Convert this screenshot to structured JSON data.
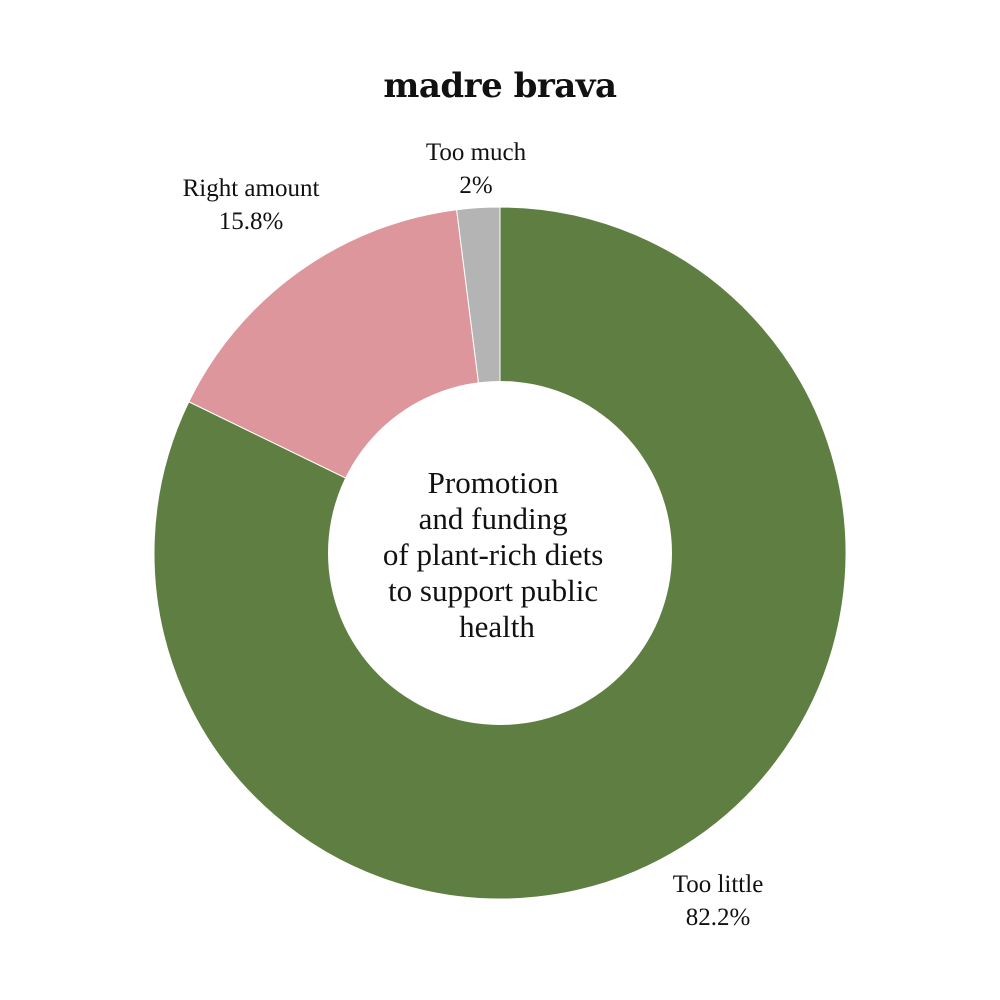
{
  "logo": {
    "text": "madre brava"
  },
  "chart_data": {
    "type": "pie",
    "center_label": [
      "Promotion",
      "and funding",
      "of plant-rich diets",
      "to support public",
      "health"
    ],
    "slices": [
      {
        "label": "Too little",
        "value_label": "82.2%",
        "value": 82.2,
        "color": "#5e7f41"
      },
      {
        "label": "Right amount",
        "value_label": "15.8%",
        "value": 15.8,
        "color": "#dd969c"
      },
      {
        "label": "Too much",
        "value_label": "2%",
        "value": 2.0,
        "color": "#b4b4b4"
      }
    ]
  }
}
